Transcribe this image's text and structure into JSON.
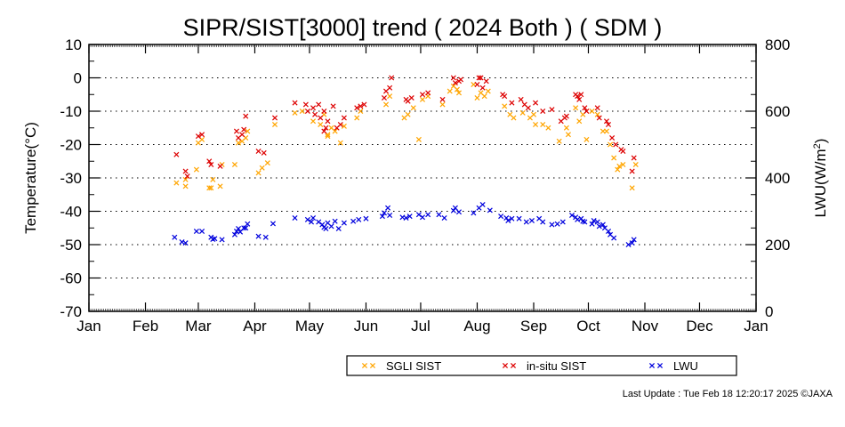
{
  "chart_data": {
    "type": "scatter",
    "title": "SIPR/SIST[3000] trend ( 2024 Both ) ( SDM )",
    "ylabel": "Temperature(°C)",
    "y2label_main": "LWU(W/m",
    "y2label_sup": "2",
    "y2label_end": ")",
    "ylim": [
      -70,
      10
    ],
    "y2lim": [
      0,
      800
    ],
    "yticks": [
      "10",
      "0",
      "-10",
      "-20",
      "-30",
      "-40",
      "-50",
      "-60",
      "-70"
    ],
    "y2ticks": [
      "800",
      "600",
      "400",
      "200",
      "0"
    ],
    "months": [
      "Jan",
      "Feb",
      "Mar",
      "Apr",
      "May",
      "Jun",
      "Jul",
      "Aug",
      "Sep",
      "Oct",
      "Nov",
      "Dec",
      "Jan"
    ],
    "x_unit": "day of year 2024 (Jan 1 = 0)",
    "grid": "horizontal dotted",
    "legend_position": "bottom-right",
    "series": [
      {
        "name": "SGLI SIST",
        "axis": "left",
        "color": "#FFA500",
        "points": [
          [
            48,
            -31.5
          ],
          [
            53,
            -30.5
          ],
          [
            53,
            -32.5
          ],
          [
            59,
            -27.5
          ],
          [
            60,
            -19.5
          ],
          [
            62,
            -18.5
          ],
          [
            66,
            -33
          ],
          [
            67,
            -33
          ],
          [
            68,
            -30.5
          ],
          [
            72,
            -32.5
          ],
          [
            73,
            -26
          ],
          [
            80,
            -26
          ],
          [
            82,
            -19.5
          ],
          [
            84,
            -19
          ],
          [
            86,
            -18
          ],
          [
            87,
            -16
          ],
          [
            93,
            -28.5
          ],
          [
            95,
            -27
          ],
          [
            98,
            -25.5
          ],
          [
            102,
            -14
          ],
          [
            113,
            -10.5
          ],
          [
            117,
            -10
          ],
          [
            123,
            -13
          ],
          [
            127,
            -14
          ],
          [
            129,
            -11
          ],
          [
            131,
            -17.5
          ],
          [
            131,
            -17
          ],
          [
            133,
            -15
          ],
          [
            135,
            -16
          ],
          [
            138,
            -19.5
          ],
          [
            140,
            -14.5
          ],
          [
            147,
            -12
          ],
          [
            149,
            -10
          ],
          [
            163,
            -8
          ],
          [
            165,
            -5.5
          ],
          [
            173,
            -12
          ],
          [
            175,
            -11
          ],
          [
            178,
            -9
          ],
          [
            181,
            -18.5
          ],
          [
            183,
            -6.5
          ],
          [
            186,
            -5.5
          ],
          [
            194,
            -8
          ],
          [
            198,
            -4
          ],
          [
            200,
            -2.5
          ],
          [
            202,
            -3.5
          ],
          [
            203,
            -4.5
          ],
          [
            211,
            -2
          ],
          [
            213,
            -6
          ],
          [
            215,
            -4.5
          ],
          [
            217,
            -5.5
          ],
          [
            219,
            -4
          ],
          [
            228,
            -8.5
          ],
          [
            231,
            -11
          ],
          [
            233,
            -12
          ],
          [
            238,
            -10.5
          ],
          [
            242,
            -12
          ],
          [
            244,
            -11
          ],
          [
            245,
            -14
          ],
          [
            249,
            -14
          ],
          [
            252,
            -15
          ],
          [
            258,
            -19
          ],
          [
            262,
            -15
          ],
          [
            263,
            -17
          ],
          [
            267,
            -9
          ],
          [
            269,
            -13
          ],
          [
            271,
            -11
          ],
          [
            273,
            -18.5
          ],
          [
            276,
            -10
          ],
          [
            279,
            -11
          ],
          [
            282,
            -16
          ],
          [
            284,
            -16
          ],
          [
            286,
            -20
          ],
          [
            288,
            -24
          ],
          [
            290,
            -27.5
          ],
          [
            291,
            -26.5
          ],
          [
            293,
            -26
          ],
          [
            298,
            -33
          ],
          [
            300,
            -26
          ]
        ]
      },
      {
        "name": "in-situ SIST",
        "axis": "left",
        "color": "#DD0000",
        "points": [
          [
            48,
            -23
          ],
          [
            53,
            -28
          ],
          [
            54,
            -29.5
          ],
          [
            60,
            -17.5
          ],
          [
            62,
            -17
          ],
          [
            66,
            -25
          ],
          [
            67,
            -26
          ],
          [
            72,
            -26.5
          ],
          [
            81,
            -16
          ],
          [
            82,
            -18
          ],
          [
            84,
            -17
          ],
          [
            85,
            -15.5
          ],
          [
            86,
            -11.5
          ],
          [
            93,
            -22
          ],
          [
            96,
            -22.5
          ],
          [
            102,
            -12
          ],
          [
            113,
            -7.5
          ],
          [
            119,
            -8
          ],
          [
            120,
            -10
          ],
          [
            123,
            -9
          ],
          [
            124,
            -11
          ],
          [
            126,
            -8
          ],
          [
            127,
            -12
          ],
          [
            129,
            -10
          ],
          [
            129,
            -16
          ],
          [
            130,
            -15
          ],
          [
            131,
            -13
          ],
          [
            134,
            -8.5
          ],
          [
            136,
            -15
          ],
          [
            138,
            -14
          ],
          [
            140,
            -12
          ],
          [
            147,
            -9
          ],
          [
            149,
            -8.5
          ],
          [
            151,
            -8
          ],
          [
            162,
            -6
          ],
          [
            163,
            -4
          ],
          [
            165,
            -3
          ],
          [
            166,
            0
          ],
          [
            174,
            -6.5
          ],
          [
            175,
            -7
          ],
          [
            177,
            -6
          ],
          [
            183,
            -5
          ],
          [
            186,
            -4.5
          ],
          [
            194,
            -6.5
          ],
          [
            200,
            0
          ],
          [
            201,
            -1.5
          ],
          [
            203,
            -1
          ],
          [
            204,
            -0.5
          ],
          [
            213,
            -2
          ],
          [
            214,
            0
          ],
          [
            215,
            0
          ],
          [
            216,
            -3
          ],
          [
            218,
            -1
          ],
          [
            227,
            -5
          ],
          [
            228,
            -5.5
          ],
          [
            232,
            -7.5
          ],
          [
            237,
            -6.5
          ],
          [
            239,
            -8
          ],
          [
            241,
            -9
          ],
          [
            245,
            -7.5
          ],
          [
            249,
            -10
          ],
          [
            254,
            -9.5
          ],
          [
            259,
            -13
          ],
          [
            261,
            -12
          ],
          [
            262,
            -11.5
          ],
          [
            267,
            -5
          ],
          [
            268,
            -5.5
          ],
          [
            269,
            -6.5
          ],
          [
            270,
            -5
          ],
          [
            272,
            -9
          ],
          [
            273,
            -10
          ],
          [
            279,
            -9
          ],
          [
            280,
            -12
          ],
          [
            284,
            -13
          ],
          [
            285,
            -14
          ],
          [
            287,
            -18
          ],
          [
            289,
            -20
          ],
          [
            292,
            -21.5
          ],
          [
            293,
            -22
          ],
          [
            298,
            -28
          ],
          [
            299,
            -24
          ]
        ]
      },
      {
        "name": "LWU",
        "axis": "right",
        "color": "#0000DD",
        "points": [
          [
            47,
            222
          ],
          [
            51,
            208
          ],
          [
            53,
            205
          ],
          [
            59,
            240
          ],
          [
            62,
            240
          ],
          [
            67,
            222
          ],
          [
            68,
            216
          ],
          [
            69,
            218
          ],
          [
            73,
            215
          ],
          [
            80,
            230
          ],
          [
            81,
            240
          ],
          [
            82,
            248
          ],
          [
            83,
            238
          ],
          [
            85,
            250
          ],
          [
            86,
            250
          ],
          [
            87,
            262
          ],
          [
            93,
            225
          ],
          [
            97,
            222
          ],
          [
            101,
            263
          ],
          [
            113,
            280
          ],
          [
            120,
            275
          ],
          [
            122,
            268
          ],
          [
            123,
            280
          ],
          [
            126,
            268
          ],
          [
            128,
            260
          ],
          [
            129,
            252
          ],
          [
            130,
            248
          ],
          [
            131,
            265
          ],
          [
            133,
            255
          ],
          [
            135,
            270
          ],
          [
            137,
            248
          ],
          [
            140,
            265
          ],
          [
            145,
            270
          ],
          [
            148,
            275
          ],
          [
            152,
            278
          ],
          [
            161,
            285
          ],
          [
            162,
            295
          ],
          [
            164,
            310
          ],
          [
            165,
            288
          ],
          [
            172,
            282
          ],
          [
            174,
            280
          ],
          [
            176,
            285
          ],
          [
            181,
            290
          ],
          [
            183,
            282
          ],
          [
            186,
            290
          ],
          [
            192,
            290
          ],
          [
            195,
            280
          ],
          [
            200,
            302
          ],
          [
            201,
            310
          ],
          [
            203,
            298
          ],
          [
            211,
            295
          ],
          [
            214,
            310
          ],
          [
            216,
            320
          ],
          [
            220,
            303
          ],
          [
            226,
            285
          ],
          [
            229,
            280
          ],
          [
            230,
            272
          ],
          [
            232,
            278
          ],
          [
            236,
            278
          ],
          [
            240,
            268
          ],
          [
            243,
            272
          ],
          [
            247,
            278
          ],
          [
            249,
            268
          ],
          [
            254,
            260
          ],
          [
            257,
            262
          ],
          [
            260,
            268
          ],
          [
            265,
            288
          ],
          [
            267,
            282
          ],
          [
            268,
            275
          ],
          [
            270,
            278
          ],
          [
            271,
            270
          ],
          [
            272,
            268
          ],
          [
            276,
            262
          ],
          [
            277,
            272
          ],
          [
            279,
            268
          ],
          [
            280,
            255
          ],
          [
            282,
            260
          ],
          [
            283,
            250
          ],
          [
            285,
            240
          ],
          [
            286,
            230
          ],
          [
            288,
            220
          ],
          [
            296,
            200
          ],
          [
            298,
            205
          ],
          [
            299,
            215
          ]
        ]
      }
    ]
  },
  "footer": "Last Update : Tue Feb 18 12:20:17 2025  ©JAXA"
}
